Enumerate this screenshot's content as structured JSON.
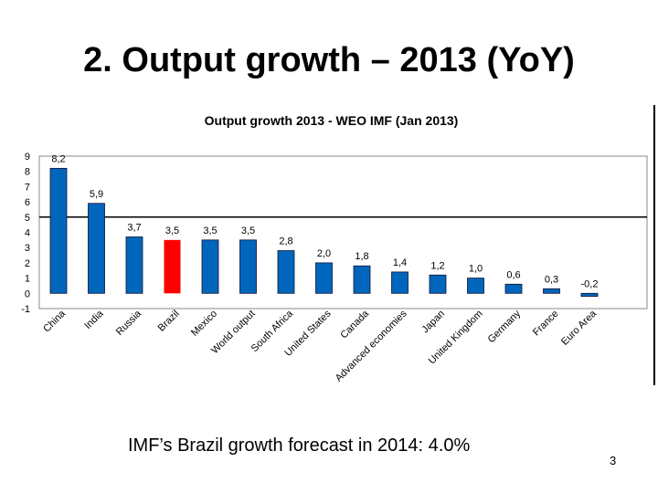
{
  "slide": {
    "title": "2. Output growth – 2013 (YoY)",
    "footer": "IMF’s Brazil growth forecast in 2014: 4.0%",
    "page_number": "3"
  },
  "chart_data": {
    "type": "bar",
    "title": "Output growth 2013 - WEO IMF (Jan 2013)",
    "xlabel": "",
    "ylabel": "",
    "ylim": [
      -1,
      9
    ],
    "yticks": [
      "-1",
      "0",
      "1",
      "2",
      "3",
      "4",
      "5",
      "6",
      "7",
      "8",
      "9"
    ],
    "grid": "horizontal lines at 9 and 5",
    "categories": [
      "China",
      "India",
      "Russia",
      "Brazil",
      "Mexico",
      "World output",
      "South Africa",
      "United States",
      "Canada",
      "Advanced economies",
      "Japan",
      "United Kingdom",
      "Germany",
      "France",
      "Euro Area"
    ],
    "values": [
      8.2,
      5.9,
      3.7,
      3.5,
      3.5,
      3.5,
      2.8,
      2.0,
      1.8,
      1.4,
      1.2,
      1.0,
      0.6,
      0.3,
      -0.2
    ],
    "data_labels": [
      "8,2",
      "5,9",
      "3,7",
      "3,5",
      "3,5",
      "3,5",
      "2,8",
      "2,0",
      "1,8",
      "1,4",
      "1,2",
      "1,0",
      "0,6",
      "0,3",
      "-0,2"
    ],
    "colors": {
      "default": "#0066bb",
      "highlight": "#ff0000",
      "highlight_category": "Brazil"
    },
    "legend": "none"
  }
}
